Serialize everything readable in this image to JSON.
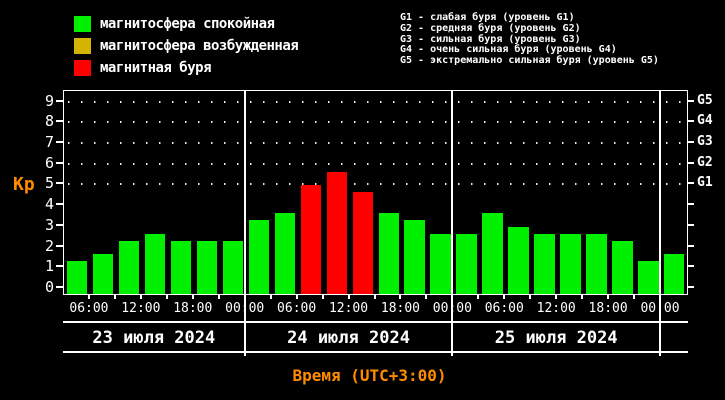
{
  "legend": {
    "items": [
      {
        "name": "quiet",
        "label": "магнитосфера спокойная",
        "color": "#00f000"
      },
      {
        "name": "active",
        "label": "магнитосфера возбужденная",
        "color": "#d4b400"
      },
      {
        "name": "storm",
        "label": "магнитная буря",
        "color": "#ff0000"
      }
    ]
  },
  "g_legend": {
    "lines": [
      "G1 - слабая буря (уровень G1)",
      "G2 - средняя буря (уровень G2)",
      "G3 - сильная буря (уровень G3)",
      "G4 - очень сильная буря (уровень G4)",
      "G5 - экстремально сильная буря (уровень G5)"
    ]
  },
  "chart_data": {
    "type": "bar",
    "ylabel": "Kp",
    "xlabel": "Время (UTC+3:00)",
    "ylim": [
      0,
      9
    ],
    "yticks": [
      0,
      1,
      2,
      3,
      4,
      5,
      6,
      7,
      8,
      9
    ],
    "right_scale": [
      {
        "label": "G1",
        "kp": 5
      },
      {
        "label": "G2",
        "kp": 6
      },
      {
        "label": "G3",
        "kp": 7
      },
      {
        "label": "G4",
        "kp": 8
      },
      {
        "label": "G5",
        "kp": 9
      }
    ],
    "grid_dot_rows_kp": [
      5,
      6,
      7,
      8,
      9
    ],
    "hours_per_bar": 3,
    "colors": {
      "quiet": "#00f000",
      "active": "#d4b400",
      "storm": "#ff0000"
    },
    "time_tick_labels": [
      "06:00",
      "12:00",
      "18:00",
      "00:00",
      "06:00",
      "12:00",
      "18:00",
      "00:00",
      "06:00",
      "12:00",
      "18:00",
      "00:00"
    ],
    "days": [
      {
        "date": "23 июля 2024",
        "bars": [
          {
            "time": "03:00",
            "kp": 1.33,
            "level": "quiet"
          },
          {
            "time": "06:00",
            "kp": 1.67,
            "level": "quiet"
          },
          {
            "time": "09:00",
            "kp": 2.33,
            "level": "quiet"
          },
          {
            "time": "12:00",
            "kp": 2.67,
            "level": "quiet"
          },
          {
            "time": "15:00",
            "kp": 2.33,
            "level": "quiet"
          },
          {
            "time": "18:00",
            "kp": 2.33,
            "level": "quiet"
          },
          {
            "time": "21:00",
            "kp": 2.33,
            "level": "quiet"
          }
        ]
      },
      {
        "date": "24 июля 2024",
        "bars": [
          {
            "time": "00:00",
            "kp": 3.33,
            "level": "quiet"
          },
          {
            "time": "03:00",
            "kp": 3.67,
            "level": "quiet"
          },
          {
            "time": "06:00",
            "kp": 5.0,
            "level": "storm"
          },
          {
            "time": "09:00",
            "kp": 5.67,
            "level": "storm"
          },
          {
            "time": "12:00",
            "kp": 4.67,
            "level": "storm"
          },
          {
            "time": "15:00",
            "kp": 3.67,
            "level": "quiet"
          },
          {
            "time": "18:00",
            "kp": 3.33,
            "level": "quiet"
          },
          {
            "time": "21:00",
            "kp": 2.67,
            "level": "quiet"
          }
        ]
      },
      {
        "date": "25 июля 2024",
        "bars": [
          {
            "time": "00:00",
            "kp": 2.67,
            "level": "quiet"
          },
          {
            "time": "03:00",
            "kp": 3.67,
            "level": "quiet"
          },
          {
            "time": "06:00",
            "kp": 3.0,
            "level": "quiet"
          },
          {
            "time": "09:00",
            "kp": 2.67,
            "level": "quiet"
          },
          {
            "time": "12:00",
            "kp": 2.67,
            "level": "quiet"
          },
          {
            "time": "15:00",
            "kp": 2.67,
            "level": "quiet"
          },
          {
            "time": "18:00",
            "kp": 2.33,
            "level": "quiet"
          },
          {
            "time": "21:00",
            "kp": 1.33,
            "level": "quiet"
          }
        ]
      },
      {
        "date": "",
        "bars": [
          {
            "time": "00:00",
            "kp": 1.67,
            "level": "quiet"
          }
        ]
      }
    ]
  }
}
